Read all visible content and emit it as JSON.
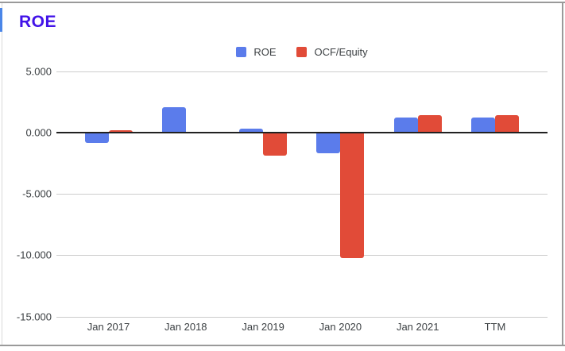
{
  "chart_data": {
    "type": "bar",
    "title": "ROE",
    "title_color": "#4213E8",
    "categories": [
      "Jan 2017",
      "Jan 2018",
      "Jan 2019",
      "Jan 2020",
      "Jan 2021",
      "TTM"
    ],
    "series": [
      {
        "name": "ROE",
        "color": "#5B7CEB",
        "values": [
          -0.8,
          2.1,
          0.3,
          -1.6,
          1.2,
          1.2
        ]
      },
      {
        "name": "OCF/Equity",
        "color": "#E14B38",
        "values": [
          0.2,
          0.0,
          -1.8,
          -10.2,
          1.4,
          1.4
        ]
      }
    ],
    "y_ticks": [
      {
        "label": "5.000",
        "value": 5
      },
      {
        "label": "0.000",
        "value": 0
      },
      {
        "label": "-5.000",
        "value": -5
      },
      {
        "label": "-10.000",
        "value": -10
      },
      {
        "label": "-15.000",
        "value": -15
      }
    ],
    "ylim": [
      -15,
      5
    ],
    "grid": true,
    "legend_position": "top",
    "zero_line_color": "#212121",
    "gridline_color": "#cccccc"
  }
}
